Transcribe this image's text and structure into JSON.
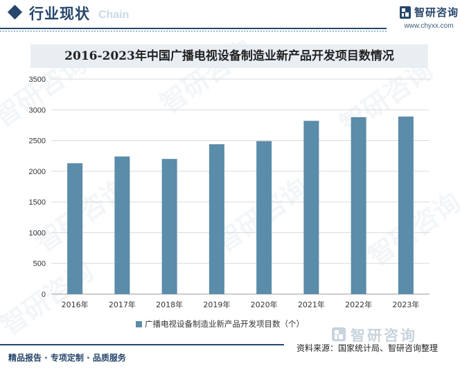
{
  "header": {
    "section_title": "行业现状",
    "watermark_text": "Chain",
    "logo_text": "智研咨询",
    "logo_url": "www.chyxx.com"
  },
  "watermark": {
    "text": "智研咨询"
  },
  "chart_data": {
    "type": "bar",
    "title": "2016-2023年中国广播电视设备制造业新产品开发项目数情况",
    "categories": [
      "2016年",
      "2017年",
      "2018年",
      "2019年",
      "2020年",
      "2021年",
      "2022年",
      "2023年"
    ],
    "series": [
      {
        "name": "广播电视设备制造业新产品开发项目数（个）",
        "values": [
          2130,
          2240,
          2200,
          2440,
          2490,
          2820,
          2880,
          2890
        ],
        "color": "#5b8ca9"
      }
    ],
    "y_ticks": [
      "0",
      "500",
      "1000",
      "1500",
      "2000",
      "2500",
      "3000",
      "3500"
    ],
    "ylim": [
      0,
      3500
    ],
    "grid": true,
    "legend_position": "bottom-center",
    "xlabel": "",
    "ylabel": ""
  },
  "legend": {
    "label": "广播电视设备制造业新产品开发项目数（个）"
  },
  "footer": {
    "left_text": "精品报告 · 专项定制 · 品质服务",
    "source_text": "资料来源：国家统计局、智研咨询整理",
    "bottom_logo_text": "智研咨询"
  },
  "colors": {
    "brand": "#27466b",
    "bar": "#5b8ca9",
    "title_bg": "#e9eef3",
    "grid": "#d9d9d9"
  }
}
